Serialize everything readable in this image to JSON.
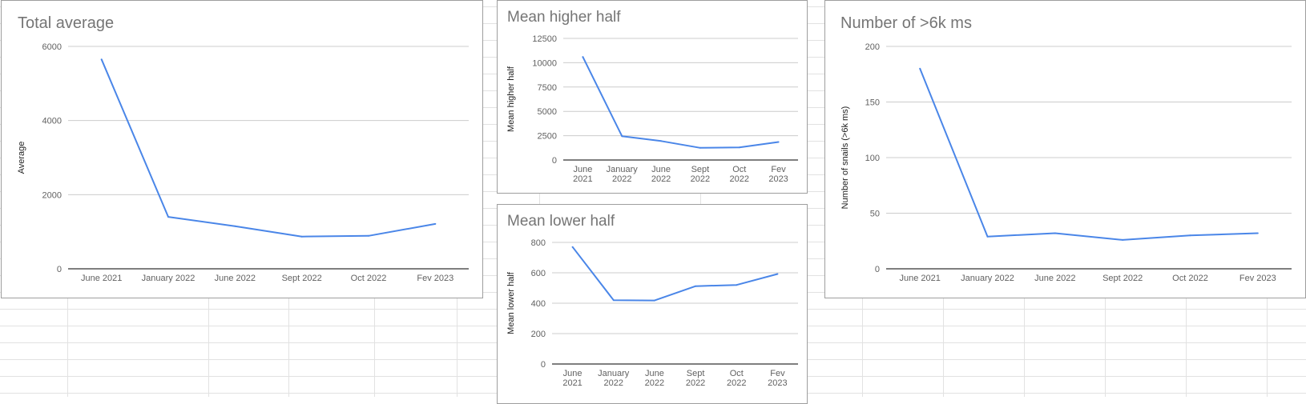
{
  "chart_data": [
    {
      "id": "total",
      "type": "line",
      "title": "Total average",
      "xlabel": "",
      "ylabel": "Average",
      "categories": [
        "June 2021",
        "January 2022",
        "June 2022",
        "Sept 2022",
        "Oct 2022",
        "Fev 2023"
      ],
      "series": [
        {
          "name": "Average",
          "values": [
            5650,
            1400,
            1150,
            870,
            890,
            1210
          ]
        }
      ],
      "ylim": [
        0,
        6000
      ],
      "yticks": [
        "0",
        "2000",
        "4000",
        "6000"
      ],
      "grid": true,
      "color": "#4a86e8"
    },
    {
      "id": "higher",
      "type": "line",
      "title": "Mean higher half",
      "xlabel": "",
      "ylabel": "Mean higher half",
      "categories": [
        "June 2021",
        "January 2022",
        "June 2022",
        "Sept 2022",
        "Oct 2022",
        "Fev 2023"
      ],
      "series": [
        {
          "name": "Mean higher half",
          "values": [
            10600,
            2450,
            1950,
            1250,
            1300,
            1850
          ]
        }
      ],
      "ylim": [
        0,
        12500
      ],
      "yticks": [
        "0",
        "2500",
        "5000",
        "7500",
        "10000",
        "12500"
      ],
      "grid": true,
      "color": "#4a86e8"
    },
    {
      "id": "lower",
      "type": "line",
      "title": "Mean lower half",
      "xlabel": "",
      "ylabel": "Mean lower half",
      "categories": [
        "June 2021",
        "January 2022",
        "June 2022",
        "Sept 2022",
        "Oct 2022",
        "Fev 2023"
      ],
      "series": [
        {
          "name": "Mean lower half",
          "values": [
            770,
            420,
            418,
            512,
            520,
            592
          ]
        }
      ],
      "ylim": [
        0,
        800
      ],
      "yticks": [
        "0",
        "200",
        "400",
        "600",
        "800"
      ],
      "grid": true,
      "color": "#4a86e8"
    },
    {
      "id": "count",
      "type": "line",
      "title": "Number of >6k ms",
      "xlabel": "",
      "ylabel": "Number of snails (>6k ms)",
      "categories": [
        "June 2021",
        "January 2022",
        "June 2022",
        "Sept 2022",
        "Oct 2022",
        "Fev 2023"
      ],
      "series": [
        {
          "name": "Number of snails (>6k ms)",
          "values": [
            180,
            29,
            32,
            26,
            30,
            32
          ]
        }
      ],
      "ylim": [
        0,
        200
      ],
      "yticks": [
        "0",
        "50",
        "100",
        "150",
        "200"
      ],
      "grid": true,
      "color": "#4a86e8"
    }
  ]
}
